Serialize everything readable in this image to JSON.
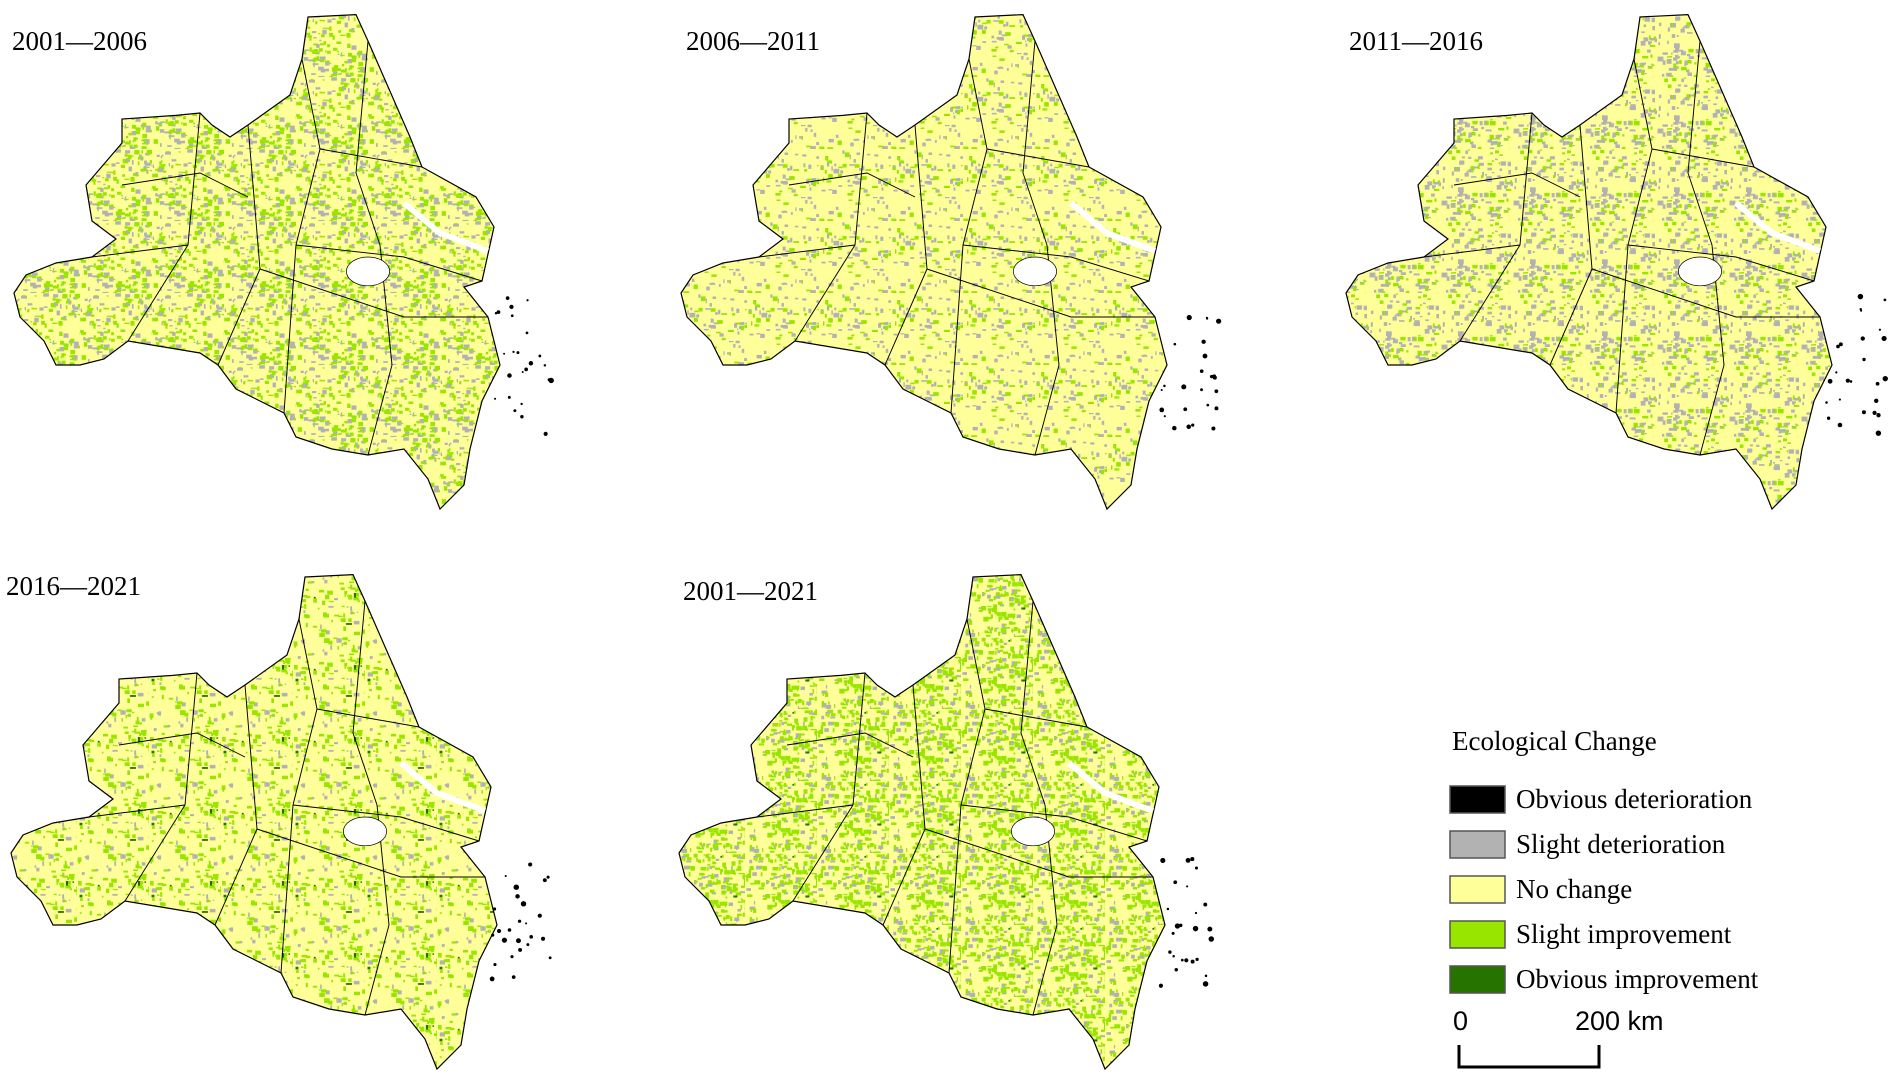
{
  "panels": [
    {
      "label": "2001—2006"
    },
    {
      "label": "2006—2011"
    },
    {
      "label": "2011—2016"
    },
    {
      "label": "2016—2021"
    },
    {
      "label": "2001—2021"
    }
  ],
  "legend": {
    "title": "Ecological Change",
    "items": [
      {
        "label": "Obvious deterioration",
        "color": "#000000"
      },
      {
        "label": "Slight deterioration",
        "color": "#b2b2b2"
      },
      {
        "label": "No change",
        "color": "#ffff99"
      },
      {
        "label": "Slight improvement",
        "color": "#98e600"
      },
      {
        "label": "Obvious improvement",
        "color": "#267300"
      }
    ]
  },
  "scale_bar": {
    "start": "0",
    "end": "200 km"
  }
}
